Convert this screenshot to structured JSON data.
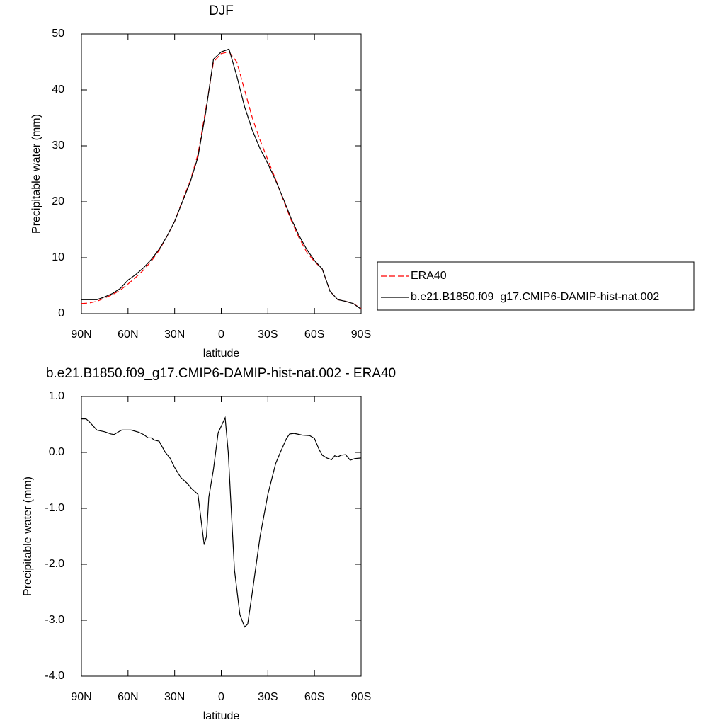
{
  "chart_data": [
    {
      "type": "line",
      "title": "DJF",
      "xlabel": "latitude",
      "ylabel": "Precipitable water (mm)",
      "x": [
        90,
        85,
        80,
        75,
        70,
        65,
        60,
        55,
        50,
        45,
        40,
        35,
        30,
        25,
        20,
        15,
        10,
        5,
        0,
        -5,
        -10,
        -15,
        -20,
        -25,
        -30,
        -35,
        -40,
        -45,
        -50,
        -55,
        -60,
        -65,
        -70,
        -75,
        -80,
        -85,
        -90
      ],
      "series": [
        {
          "name": "ERA40",
          "color": "#ff0000",
          "line_style": "dashed",
          "values": [
            1.8,
            1.9,
            2.2,
            2.8,
            3.4,
            4.2,
            5.3,
            6.5,
            7.8,
            9.4,
            11.3,
            13.8,
            16.5,
            20.2,
            23.7,
            28.5,
            36.5,
            45.0,
            46.5,
            46.8,
            45.0,
            40.0,
            35.0,
            31.0,
            27.5,
            24.0,
            20.3,
            16.7,
            13.6,
            11.0,
            9.3,
            8.0,
            4.0,
            2.5,
            2.2,
            1.8,
            0.9
          ]
        },
        {
          "name": "b.e21.B1850.f09_g17.CMIP6-DAMIP-hist-nat.002",
          "color": "#000000",
          "line_style": "solid",
          "values": [
            2.5,
            2.5,
            2.5,
            3.0,
            3.6,
            4.5,
            6.0,
            7.0,
            8.2,
            9.7,
            11.5,
            13.8,
            16.5,
            20.0,
            23.5,
            28.0,
            36.0,
            45.5,
            46.8,
            47.3,
            42.5,
            37.0,
            32.8,
            29.5,
            26.8,
            23.8,
            20.5,
            17.0,
            14.0,
            11.5,
            9.5,
            8.0,
            4.0,
            2.5,
            2.2,
            1.8,
            0.8
          ]
        }
      ],
      "xlim": [
        90,
        -90
      ],
      "xticks": [
        {
          "value": 90,
          "label": "90N"
        },
        {
          "value": 60,
          "label": "60N"
        },
        {
          "value": 30,
          "label": "30N"
        },
        0,
        {
          "value": -30,
          "label": "30S"
        },
        {
          "value": -60,
          "label": "60S"
        },
        {
          "value": -90,
          "label": "90S"
        }
      ],
      "ylim": [
        0,
        50
      ],
      "yticks": [
        0,
        10,
        20,
        30,
        40,
        50
      ],
      "legend": "right"
    },
    {
      "type": "line",
      "title": "b.e21.B1850.f09_g17.CMIP6-DAMIP-hist-nat.002 - ERA40",
      "xlabel": "latitude",
      "ylabel": "Precipitable water (mm)",
      "x": [
        90,
        87,
        85,
        80,
        75,
        71,
        69,
        66,
        64,
        58,
        53,
        50,
        47,
        45,
        43,
        40,
        38,
        36,
        33,
        30,
        26,
        22,
        19,
        15,
        11,
        9.5,
        8,
        5,
        2,
        -2.5,
        -4.5,
        -6,
        -8.5,
        -12,
        -15,
        -17,
        -20,
        -25,
        -30,
        -35,
        -38,
        -42,
        -44,
        -47,
        -52,
        -57,
        -60,
        -63,
        -65,
        -68,
        -71,
        -73,
        -75,
        -77,
        -80,
        -83,
        -86,
        -90
      ],
      "values": [
        0.6,
        0.6,
        0.55,
        0.4,
        0.37,
        0.33,
        0.32,
        0.37,
        0.4,
        0.4,
        0.36,
        0.32,
        0.26,
        0.26,
        0.22,
        0.2,
        0.1,
        0.0,
        -0.1,
        -0.27,
        -0.45,
        -0.55,
        -0.65,
        -0.75,
        -1.65,
        -1.5,
        -0.8,
        -0.3,
        0.35,
        0.62,
        0.0,
        -0.8,
        -2.1,
        -2.9,
        -3.12,
        -3.07,
        -2.5,
        -1.5,
        -0.75,
        -0.2,
        0.0,
        0.25,
        0.33,
        0.34,
        0.31,
        0.3,
        0.25,
        0.05,
        -0.05,
        -0.1,
        -0.13,
        -0.06,
        -0.08,
        -0.05,
        -0.04,
        -0.14,
        -0.11,
        -0.1
      ],
      "color": "#000000",
      "xlim": [
        90,
        -90
      ],
      "xticks": [
        {
          "value": 90,
          "label": "90N"
        },
        {
          "value": 60,
          "label": "60N"
        },
        {
          "value": 30,
          "label": "30N"
        },
        0,
        {
          "value": -30,
          "label": "30S"
        },
        {
          "value": -60,
          "label": "60S"
        },
        {
          "value": -90,
          "label": "90S"
        }
      ],
      "ylim": [
        -4,
        1
      ],
      "yticks": [
        {
          "value": 1,
          "label": "1.0"
        },
        {
          "value": 0,
          "label": "0.0"
        },
        {
          "value": -1,
          "label": "-1.0"
        },
        {
          "value": -2,
          "label": "-2.0"
        },
        {
          "value": -3,
          "label": "-3.0"
        },
        {
          "value": -4,
          "label": "-4.0"
        }
      ]
    }
  ]
}
